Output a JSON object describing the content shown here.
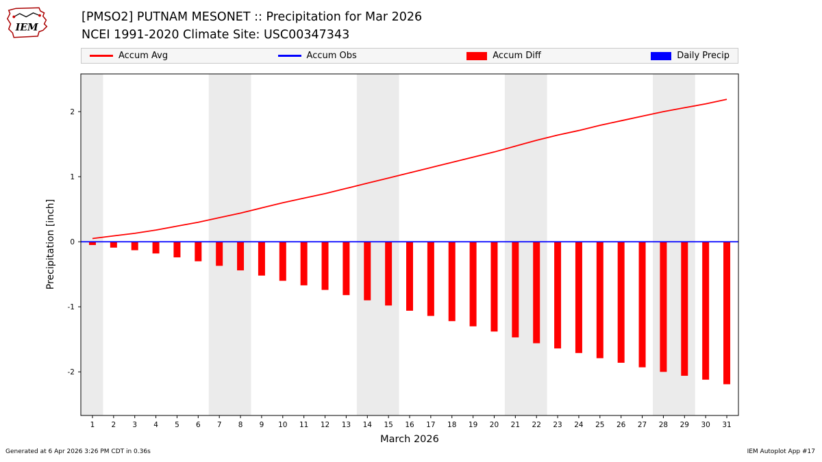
{
  "header": {
    "logo_text": "IEM",
    "title_line1": "[PMSO2] PUTNAM MESONET :: Precipitation for Mar 2026",
    "title_line2": "NCEI 1991-2020 Climate Site: USC00347343"
  },
  "legend": {
    "items": [
      {
        "label": "Accum Avg",
        "type": "line",
        "color": "#ff0000"
      },
      {
        "label": "Accum Obs",
        "type": "line",
        "color": "#0000ff"
      },
      {
        "label": "Accum Diff",
        "type": "patch",
        "color": "#ff0000"
      },
      {
        "label": "Daily Precip",
        "type": "patch",
        "color": "#0000ff"
      }
    ]
  },
  "footer": {
    "left": "Generated at 6 Apr 2026 3:26 PM CDT in 0.36s",
    "right": "IEM Autoplot App #17"
  },
  "chart_data": {
    "type": "bar",
    "title": "[PMSO2] PUTNAM MESONET :: Precipitation for Mar 2026",
    "subtitle": "NCEI 1991-2020 Climate Site: USC00347343",
    "xlabel": "March 2026",
    "ylabel": "Precipitation [inch]",
    "x": [
      1,
      2,
      3,
      4,
      5,
      6,
      7,
      8,
      9,
      10,
      11,
      12,
      13,
      14,
      15,
      16,
      17,
      18,
      19,
      20,
      21,
      22,
      23,
      24,
      25,
      26,
      27,
      28,
      29,
      30,
      31
    ],
    "xlim": [
      0.45,
      31.55
    ],
    "ylim": [
      -2.67,
      2.58
    ],
    "yticks": [
      -2,
      -1,
      0,
      1,
      2
    ],
    "grid": false,
    "legend_position": "top",
    "band_color": "#ebebeb",
    "weekend_bands": [
      [
        0.45,
        1.5
      ],
      [
        6.5,
        8.5
      ],
      [
        13.5,
        15.5
      ],
      [
        20.5,
        22.5
      ],
      [
        27.5,
        29.5
      ]
    ],
    "series": [
      {
        "name": "Accum Avg",
        "type": "line",
        "color": "#ff0000",
        "values": [
          0.05,
          0.09,
          0.13,
          0.18,
          0.24,
          0.3,
          0.37,
          0.44,
          0.52,
          0.6,
          0.67,
          0.74,
          0.82,
          0.9,
          0.98,
          1.06,
          1.14,
          1.22,
          1.3,
          1.38,
          1.47,
          1.56,
          1.64,
          1.71,
          1.79,
          1.86,
          1.93,
          2.0,
          2.06,
          2.12,
          2.19
        ]
      },
      {
        "name": "Accum Obs",
        "type": "line",
        "color": "#0000ff",
        "constant_full_width": true,
        "values": [
          0,
          0,
          0,
          0,
          0,
          0,
          0,
          0,
          0,
          0,
          0,
          0,
          0,
          0,
          0,
          0,
          0,
          0,
          0,
          0,
          0,
          0,
          0,
          0,
          0,
          0,
          0,
          0,
          0,
          0,
          0
        ]
      },
      {
        "name": "Accum Diff",
        "type": "bar",
        "color": "#ff0000",
        "values": [
          -0.05,
          -0.09,
          -0.13,
          -0.18,
          -0.24,
          -0.3,
          -0.37,
          -0.44,
          -0.52,
          -0.6,
          -0.67,
          -0.74,
          -0.82,
          -0.9,
          -0.98,
          -1.06,
          -1.14,
          -1.22,
          -1.3,
          -1.38,
          -1.47,
          -1.56,
          -1.64,
          -1.71,
          -1.79,
          -1.86,
          -1.93,
          -2.0,
          -2.06,
          -2.12,
          -2.19
        ]
      },
      {
        "name": "Daily Precip",
        "type": "bar",
        "color": "#0000ff",
        "values": [
          0,
          0,
          0,
          0,
          0,
          0,
          0,
          0,
          0,
          0,
          0,
          0,
          0,
          0,
          0,
          0,
          0,
          0,
          0,
          0,
          0,
          0,
          0,
          0,
          0,
          0,
          0,
          0,
          0,
          0,
          0
        ]
      }
    ]
  }
}
